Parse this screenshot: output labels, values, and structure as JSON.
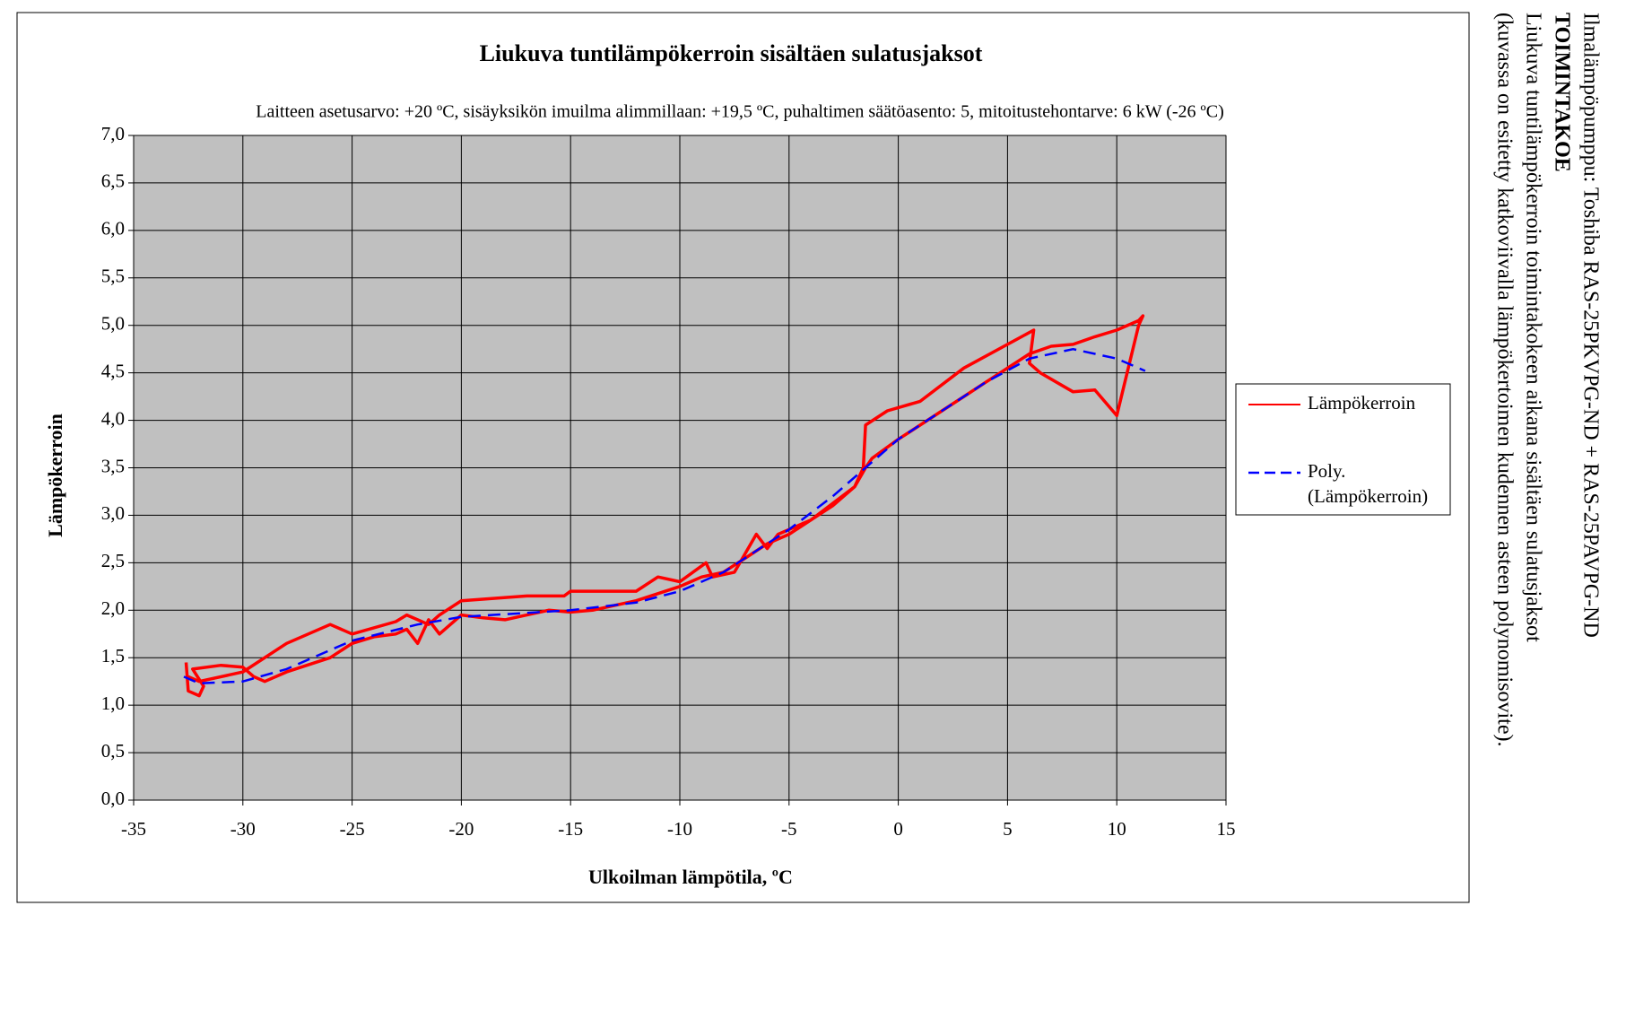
{
  "chart_data": {
    "type": "line",
    "title": "Liukuva  tuntilämpökerroin  sisältäen  sulatusjaksot",
    "subtitle": "Laitteen  asetusarvo: +20 ºC, sisäyksikön  imuilma  alimmillaan:  +19,5 ºC, puhaltimen  säätöasento: 5, mitoitustehontarve:  6 kW (-26 ºC)",
    "xlabel": "Ulkoilman  lämpötila,  ºC",
    "ylabel": "Lämpökerroin",
    "annotations": [
      "Ilmalämpöpumppu: Toshiba RAS-25PKVPG-ND + RAS-25PAVPG-ND",
      "TOIMINTAKOE",
      "Liukuva tuntilämpökerroin toimintakokeen aikana sisältäen sulatusjaksot",
      "(kuvassa on esitetty katkoviivalla lämpökertoimen kudennen asteen polynomisovite)."
    ],
    "xlim": [
      -35,
      15
    ],
    "xticks": [
      -35,
      -30,
      -25,
      -20,
      -15,
      -10,
      -5,
      0,
      5,
      10,
      15
    ],
    "ylim": [
      0,
      7
    ],
    "yticks": [
      {
        "value": 0,
        "label": "0,0"
      },
      {
        "value": 0.5,
        "label": "0,5"
      },
      {
        "value": 1,
        "label": "1,0"
      },
      {
        "value": 1.5,
        "label": "1,5"
      },
      {
        "value": 2,
        "label": "2,0"
      },
      {
        "value": 2.5,
        "label": "2,5"
      },
      {
        "value": 3,
        "label": "3,0"
      },
      {
        "value": 3.5,
        "label": "3,5"
      },
      {
        "value": 4,
        "label": "4,0"
      },
      {
        "value": 4.5,
        "label": "4,5"
      },
      {
        "value": 5,
        "label": "5,0"
      },
      {
        "value": 5.5,
        "label": "5,5"
      },
      {
        "value": 6,
        "label": "6,0"
      },
      {
        "value": 6.5,
        "label": "6,5"
      },
      {
        "value": 7,
        "label": "7,0"
      }
    ],
    "grid": true,
    "legend": "right",
    "series": [
      {
        "name": "Lämpökerroin",
        "color": "#ff0000",
        "dash": false,
        "x": [
          -32.6,
          -32.5,
          -32,
          -31.8,
          -32.3,
          -31,
          -30,
          -29.5,
          -29,
          -28,
          -26,
          -25,
          -24,
          -23,
          -22.5,
          -22,
          -21.5,
          -21,
          -20.5,
          -20,
          -19,
          -18,
          -17,
          -16,
          -15,
          -14,
          -12,
          -10,
          -9,
          -8,
          -7,
          -6,
          -5,
          -4,
          -3,
          -2,
          -1.5,
          -1.2,
          0,
          1,
          2,
          3,
          4,
          5,
          6,
          7,
          8,
          9,
          10,
          11,
          11.2,
          11,
          10,
          9,
          8,
          6.5,
          6,
          6.2,
          5,
          3,
          1,
          -0.5,
          -1.5,
          -1.6,
          -2,
          -4,
          -5.5,
          -6,
          -6.5,
          -7.5,
          -8.5,
          -8.8,
          -10,
          -11,
          -12,
          -15,
          -15.3,
          -17,
          -20,
          -21,
          -21.5,
          -22.5,
          -23,
          -25,
          -26,
          -28,
          -30,
          -32,
          -32.5
        ],
        "values": [
          1.45,
          1.15,
          1.1,
          1.2,
          1.38,
          1.42,
          1.4,
          1.3,
          1.25,
          1.35,
          1.5,
          1.65,
          1.72,
          1.75,
          1.8,
          1.65,
          1.9,
          1.75,
          1.85,
          1.95,
          1.92,
          1.9,
          1.95,
          2.0,
          1.98,
          2.0,
          2.1,
          2.25,
          2.35,
          2.4,
          2.55,
          2.7,
          2.8,
          2.95,
          3.1,
          3.3,
          3.5,
          3.6,
          3.8,
          3.95,
          4.1,
          4.25,
          4.4,
          4.55,
          4.7,
          4.78,
          4.8,
          4.88,
          4.95,
          5.05,
          5.1,
          5.0,
          4.05,
          4.32,
          4.3,
          4.5,
          4.6,
          4.95,
          4.8,
          4.55,
          4.2,
          4.1,
          3.95,
          3.5,
          3.3,
          2.95,
          2.8,
          2.65,
          2.8,
          2.4,
          2.35,
          2.5,
          2.3,
          2.35,
          2.2,
          2.2,
          2.15,
          2.15,
          2.1,
          1.95,
          1.85,
          1.95,
          1.88,
          1.75,
          1.85,
          1.65,
          1.35,
          1.25,
          1.3
        ]
      },
      {
        "name": "Poly.\n(Lämpökerroin)",
        "color": "#0000ff",
        "dash": true,
        "x": [
          -32.7,
          -32,
          -30,
          -28,
          -25,
          -22,
          -20,
          -15,
          -12,
          -10,
          -8,
          -5,
          -3,
          -1,
          0,
          2,
          4,
          6,
          8,
          10,
          11.3
        ],
        "values": [
          1.3,
          1.23,
          1.25,
          1.38,
          1.68,
          1.85,
          1.93,
          2.0,
          2.08,
          2.2,
          2.4,
          2.85,
          3.2,
          3.6,
          3.8,
          4.1,
          4.4,
          4.65,
          4.75,
          4.65,
          4.52
        ]
      }
    ]
  }
}
